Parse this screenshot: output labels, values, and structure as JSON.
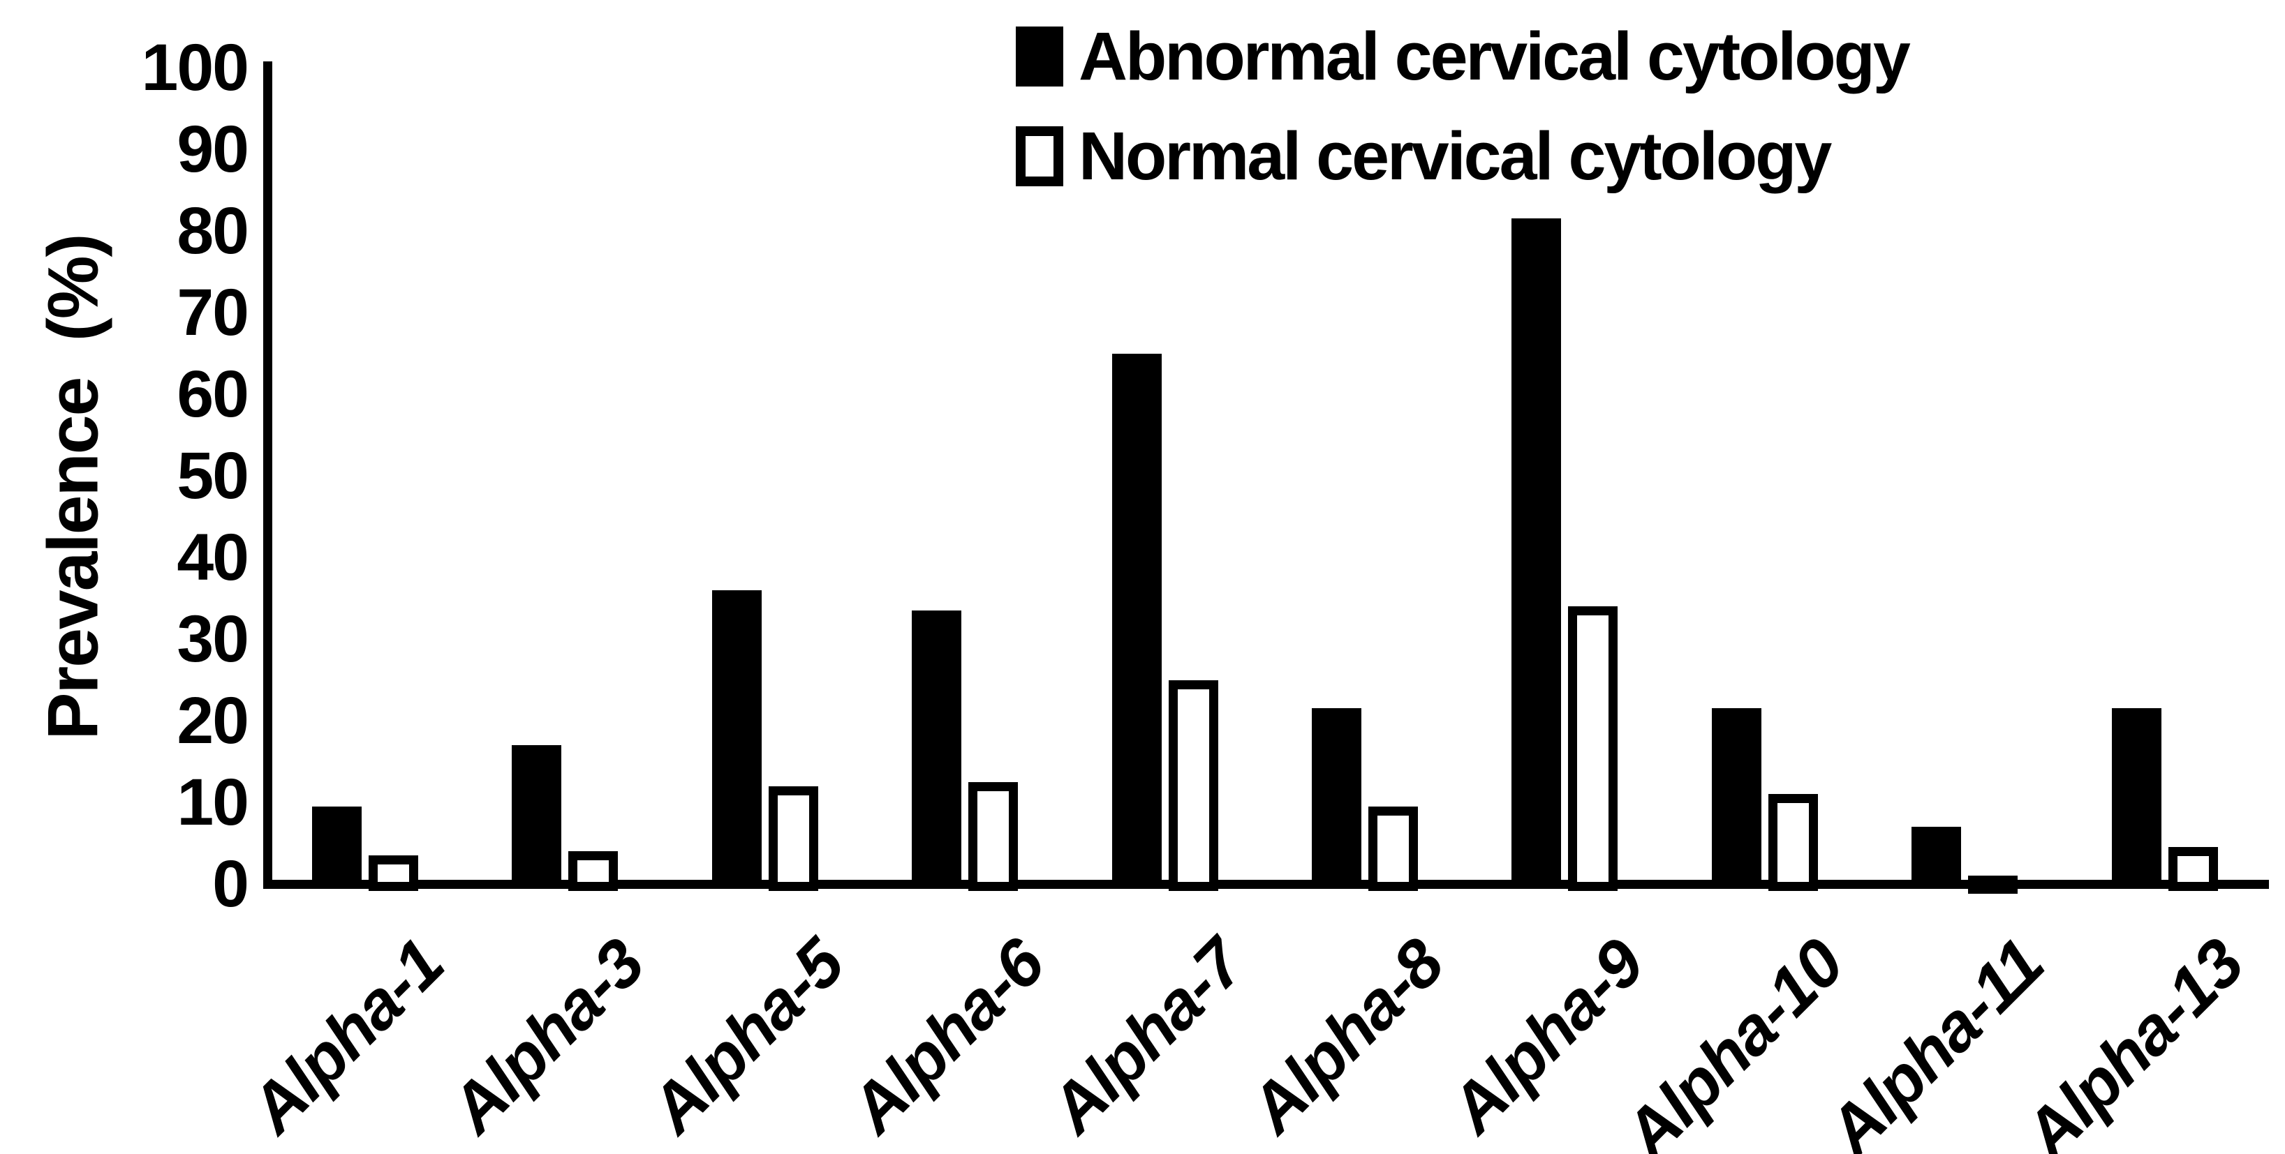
{
  "figure": {
    "background_color": "#ffffff",
    "ink_color": "#000000"
  },
  "y_axis": {
    "title": "Prevalence  (%)",
    "tick_labels": [
      "0",
      "10",
      "20",
      "30",
      "40",
      "50",
      "60",
      "70",
      "80",
      "90",
      "100"
    ]
  },
  "legend": {
    "items": [
      {
        "label": "Abnormal cervical cytology",
        "swatch": "filled"
      },
      {
        "label": "Normal cervical cytology",
        "swatch": "open"
      }
    ]
  },
  "chart_data": {
    "type": "bar",
    "categories": [
      "Alpha-1",
      "Alpha-3",
      "Alpha-5",
      "Alpha-6",
      "Alpha-7",
      "Alpha-8",
      "Alpha-9",
      "Alpha-10",
      "Alpha-11",
      "Alpha-13"
    ],
    "series": [
      {
        "name": "Abnormal cervical cytology",
        "style": "filled",
        "color": "#000000",
        "values": [
          9.5,
          17,
          36,
          33.5,
          65,
          21.5,
          81.5,
          21.5,
          7,
          21.5
        ]
      },
      {
        "name": "Normal cervical cytology",
        "style": "open",
        "color": "#ffffff",
        "values": [
          3.5,
          4,
          12,
          12.5,
          25,
          9.5,
          34,
          11,
          1,
          4.5
        ]
      }
    ],
    "xlabel": "",
    "ylabel": "Prevalence (%)",
    "ylim": [
      0,
      100
    ],
    "ytick_step": 10,
    "grid": false,
    "legend_position": "top-center"
  }
}
